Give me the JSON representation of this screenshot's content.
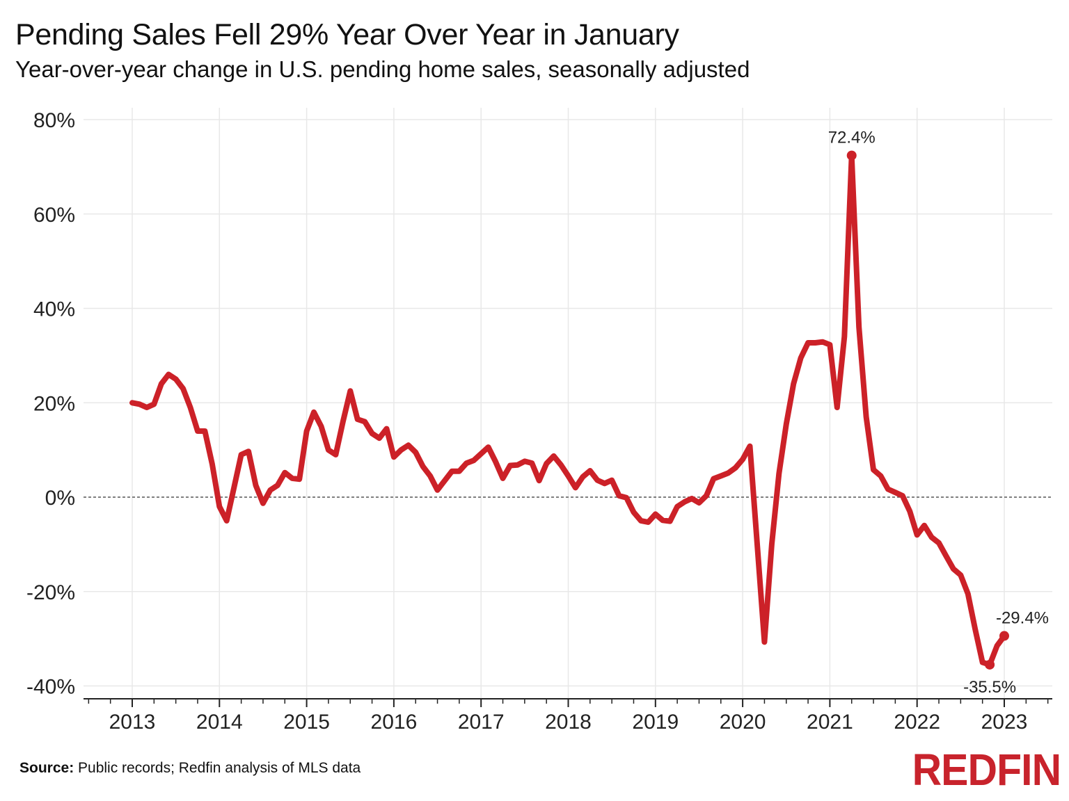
{
  "chart_data": {
    "type": "line",
    "title": "Pending Sales Fell 29% Year Over Year in January",
    "subtitle": "Year-over-year change in U.S. pending home sales, seasonally adjusted",
    "xlabel": "",
    "ylabel": "",
    "ylim": [
      -40,
      80
    ],
    "yticks": [
      "80%",
      "60%",
      "40%",
      "20%",
      "0%",
      "-20%",
      "-40%"
    ],
    "ytick_values": [
      80,
      60,
      40,
      20,
      0,
      -20,
      -40
    ],
    "xticks": [
      "2013",
      "2014",
      "2015",
      "2016",
      "2017",
      "2018",
      "2019",
      "2020",
      "2021",
      "2022",
      "2023"
    ],
    "x_start": "2013-01",
    "x_end": "2023-01",
    "x_frequency": "monthly",
    "grid": true,
    "zero_line": "dashed",
    "series": [
      {
        "color": "#cc2128",
        "values": [
          20.0,
          19.7,
          19.0,
          19.7,
          24.0,
          26.0,
          25.0,
          23.0,
          19.0,
          14.0,
          14.0,
          7.0,
          -2.0,
          -5.0,
          2.0,
          9.0,
          9.7,
          2.5,
          -1.3,
          1.5,
          2.5,
          5.2,
          4.0,
          3.8,
          14.0,
          18.0,
          15.0,
          10.0,
          9.0,
          16.0,
          22.5,
          16.5,
          16.0,
          13.5,
          12.5,
          14.5,
          8.5,
          10.0,
          11.0,
          9.5,
          6.5,
          4.5,
          1.5,
          3.5,
          5.5,
          5.5,
          7.2,
          7.8,
          9.2,
          10.6,
          7.5,
          4.0,
          6.7,
          6.8,
          7.6,
          7.2,
          3.5,
          7.1,
          8.7,
          6.8,
          4.5,
          2.0,
          4.3,
          5.6,
          3.6,
          2.9,
          3.6,
          0.3,
          -0.1,
          -3.2,
          -5.0,
          -5.3,
          -3.6,
          -4.9,
          -5.1,
          -2.0,
          -1.0,
          -0.3,
          -1.2,
          0.3,
          3.9,
          4.5,
          5.1,
          6.2,
          8.0,
          10.8,
          -10.0,
          -30.7,
          -10.0,
          5.0,
          15.5,
          24.0,
          29.5,
          32.7,
          32.7,
          32.9,
          32.3,
          19.0,
          34.0,
          72.4,
          36.0,
          17.0,
          5.8,
          4.5,
          1.7,
          1.0,
          0.3,
          -3.0,
          -8.0,
          -6.0,
          -8.5,
          -9.7,
          -12.5,
          -15.2,
          -16.5,
          -20.5,
          -28.0,
          -35.0,
          -35.5,
          -31.5,
          -29.4
        ]
      }
    ],
    "annotations": [
      {
        "label": "72.4%",
        "month_index": 99
      },
      {
        "label": "-35.5%",
        "month_index": 118
      },
      {
        "label": "-29.4%",
        "month_index": 120
      }
    ]
  },
  "footer": {
    "source_label": "Source:",
    "source_text": " Public records; Redfin analysis of MLS data"
  },
  "logo": "REDFIN"
}
